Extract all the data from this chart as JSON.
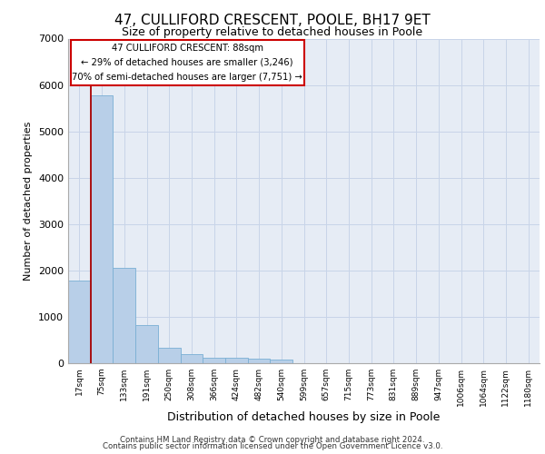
{
  "title1": "47, CULLIFORD CRESCENT, POOLE, BH17 9ET",
  "title2": "Size of property relative to detached houses in Poole",
  "xlabel": "Distribution of detached houses by size in Poole",
  "ylabel": "Number of detached properties",
  "annotation_title": "47 CULLIFORD CRESCENT: 88sqm",
  "annotation_line2": "← 29% of detached houses are smaller (3,246)",
  "annotation_line3": "70% of semi-detached houses are larger (7,751) →",
  "footer1": "Contains HM Land Registry data © Crown copyright and database right 2024.",
  "footer2": "Contains public sector information licensed under the Open Government Licence v3.0.",
  "bar_labels": [
    "17sqm",
    "75sqm",
    "133sqm",
    "191sqm",
    "250sqm",
    "308sqm",
    "366sqm",
    "424sqm",
    "482sqm",
    "540sqm",
    "599sqm",
    "657sqm",
    "715sqm",
    "773sqm",
    "831sqm",
    "889sqm",
    "947sqm",
    "1006sqm",
    "1064sqm",
    "1122sqm",
    "1180sqm"
  ],
  "bar_values": [
    1780,
    5780,
    2060,
    820,
    340,
    190,
    120,
    110,
    100,
    70,
    0,
    0,
    0,
    0,
    0,
    0,
    0,
    0,
    0,
    0,
    0
  ],
  "subject_bar_index": 1,
  "bar_color": "#b8cfe8",
  "bar_edge_color": "#7aafd4",
  "ylim": [
    0,
    7000
  ],
  "yticks": [
    0,
    1000,
    2000,
    3000,
    4000,
    5000,
    6000,
    7000
  ],
  "grid_color": "#c8d4e8",
  "bg_color": "#e6ecf5",
  "annotation_box_color": "#cc0000",
  "subject_line_color": "#aa0000",
  "title1_fontsize": 11,
  "title2_fontsize": 9,
  "ylabel_fontsize": 8,
  "xlabel_fontsize": 9
}
